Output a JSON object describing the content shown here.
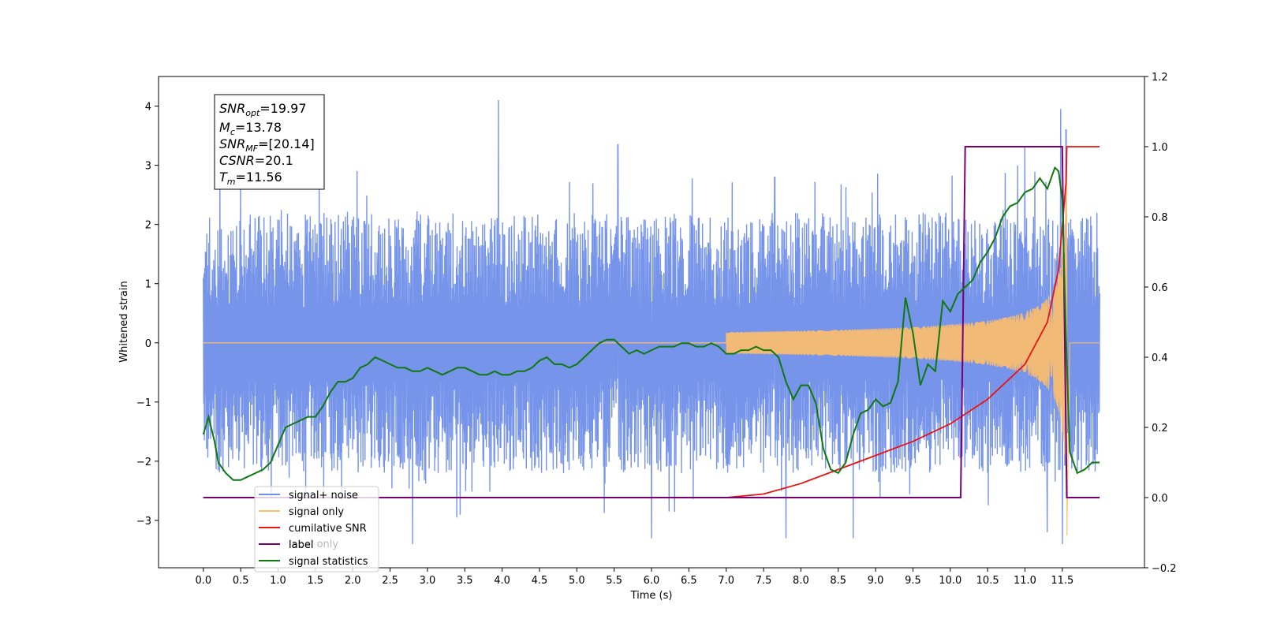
{
  "chart_data": {
    "type": "line",
    "title": "",
    "xlabel": "Time (s)",
    "ylabel": "Whitened strain",
    "xlim": [
      -0.6,
      12.6
    ],
    "ylim": [
      -3.8,
      4.5
    ],
    "y2lim": [
      -0.2,
      1.2
    ],
    "grid": false,
    "x_ticks": [
      0.0,
      0.5,
      1.0,
      1.5,
      2.0,
      2.5,
      3.0,
      3.5,
      4.0,
      4.5,
      5.0,
      5.5,
      6.0,
      6.5,
      7.0,
      7.5,
      8.0,
      8.5,
      9.0,
      9.5,
      10.0,
      10.5,
      11.0,
      11.5
    ],
    "x_tick_labels": [
      "0.0",
      "0.5",
      "1.0",
      "1.5",
      "2.0",
      "2.5",
      "3.0",
      "3.5",
      "4.0",
      "4.5",
      "5.0",
      "5.5",
      "6.0",
      "6.5",
      "7.0",
      "7.5",
      "8.0",
      "8.5",
      "9.0",
      "9.5",
      "10.0",
      "10.5",
      "11.0",
      "11.5"
    ],
    "y_ticks": [
      -3,
      -2,
      -1,
      0,
      1,
      2,
      3,
      4
    ],
    "y_tick_labels": [
      "−3",
      "−2",
      "−1",
      "0",
      "1",
      "2",
      "3",
      "4"
    ],
    "y2_ticks": [
      -0.2,
      0.0,
      0.2,
      0.4,
      0.6,
      0.8,
      1.0,
      1.2
    ],
    "y2_tick_labels": [
      "−0.2",
      "0.0",
      "0.2",
      "0.4",
      "0.6",
      "0.8",
      "1.0",
      "1.2"
    ],
    "legend_position": "bottom-left",
    "series": [
      {
        "name": "signal+ noise",
        "axis": "left",
        "color": "#6f8ee8",
        "description_values": {
          "x_range": [
            0.0,
            12.0
          ],
          "band_min": -2.3,
          "band_max": 2.0,
          "peaks": [
            [
              3.95,
              4.1
            ],
            [
              5.55,
              3.35
            ],
            [
              11.48,
              3.95
            ],
            [
              11.55,
              3.6
            ],
            [
              0.22,
              3.0
            ],
            [
              1.55,
              2.9
            ],
            [
              7.65,
              2.8
            ],
            [
              10.9,
              3.0
            ],
            [
              11.0,
              3.3
            ],
            [
              2.8,
              -3.4
            ],
            [
              6.0,
              -3.3
            ],
            [
              7.8,
              -3.3
            ],
            [
              11.5,
              -3.4
            ],
            [
              8.7,
              -3.3
            ],
            [
              11.3,
              -3.2
            ]
          ]
        }
      },
      {
        "name": "signal only",
        "axis": "left",
        "color": "#ffbe6a",
        "chirp": {
          "start": 7.0,
          "merger": 11.56,
          "end": 12.0,
          "merger_amp": 3.2
        }
      },
      {
        "name": "cumilative SNR",
        "axis": "right",
        "color": "#ee1111",
        "x": [
          7.0,
          7.5,
          8.0,
          8.5,
          9.0,
          9.5,
          10.0,
          10.5,
          11.0,
          11.3,
          11.45,
          11.55,
          11.56,
          12.0
        ],
        "y": [
          0.0,
          0.01,
          0.04,
          0.08,
          0.12,
          0.16,
          0.21,
          0.28,
          0.38,
          0.5,
          0.65,
          0.9,
          1.0,
          1.0
        ]
      },
      {
        "name": "label",
        "axis": "right",
        "color": "#770077",
        "x": [
          0.0,
          10.14,
          10.2,
          11.5,
          11.56,
          12.0
        ],
        "y": [
          0.0,
          0.0,
          1.0,
          1.0,
          0.0,
          0.0
        ]
      },
      {
        "name": "signal statistics",
        "axis": "right",
        "color": "#117711",
        "x": [
          0.0,
          0.07,
          0.15,
          0.2,
          0.3,
          0.4,
          0.5,
          0.6,
          0.7,
          0.8,
          0.9,
          1.0,
          1.1,
          1.2,
          1.3,
          1.4,
          1.5,
          1.6,
          1.7,
          1.8,
          1.9,
          2.0,
          2.1,
          2.2,
          2.3,
          2.4,
          2.5,
          2.6,
          2.7,
          2.8,
          2.9,
          3.0,
          3.1,
          3.2,
          3.3,
          3.4,
          3.5,
          3.6,
          3.7,
          3.8,
          3.9,
          4.0,
          4.1,
          4.2,
          4.3,
          4.4,
          4.5,
          4.6,
          4.7,
          4.8,
          4.9,
          5.0,
          5.1,
          5.2,
          5.3,
          5.4,
          5.5,
          5.6,
          5.7,
          5.8,
          5.9,
          6.0,
          6.1,
          6.2,
          6.3,
          6.4,
          6.5,
          6.6,
          6.7,
          6.8,
          6.9,
          7.0,
          7.1,
          7.2,
          7.3,
          7.4,
          7.5,
          7.6,
          7.7,
          7.8,
          7.9,
          8.0,
          8.1,
          8.2,
          8.3,
          8.4,
          8.5,
          8.6,
          8.7,
          8.8,
          8.9,
          9.0,
          9.1,
          9.2,
          9.3,
          9.4,
          9.5,
          9.6,
          9.7,
          9.8,
          9.9,
          10.0,
          10.1,
          10.2,
          10.3,
          10.4,
          10.5,
          10.6,
          10.7,
          10.8,
          10.9,
          11.0,
          11.1,
          11.2,
          11.3,
          11.4,
          11.45,
          11.5,
          11.55,
          11.6,
          11.7,
          11.8,
          11.9,
          12.0
        ],
        "y": [
          0.18,
          0.23,
          0.16,
          0.1,
          0.07,
          0.05,
          0.05,
          0.06,
          0.07,
          0.08,
          0.1,
          0.15,
          0.2,
          0.21,
          0.22,
          0.23,
          0.23,
          0.26,
          0.3,
          0.33,
          0.33,
          0.34,
          0.37,
          0.38,
          0.4,
          0.39,
          0.38,
          0.37,
          0.37,
          0.36,
          0.36,
          0.37,
          0.36,
          0.35,
          0.36,
          0.37,
          0.37,
          0.36,
          0.35,
          0.35,
          0.36,
          0.35,
          0.35,
          0.36,
          0.36,
          0.37,
          0.39,
          0.4,
          0.38,
          0.38,
          0.37,
          0.38,
          0.4,
          0.42,
          0.44,
          0.45,
          0.45,
          0.43,
          0.41,
          0.42,
          0.41,
          0.42,
          0.43,
          0.43,
          0.43,
          0.44,
          0.44,
          0.43,
          0.43,
          0.44,
          0.43,
          0.41,
          0.41,
          0.42,
          0.42,
          0.43,
          0.42,
          0.42,
          0.4,
          0.33,
          0.28,
          0.32,
          0.32,
          0.27,
          0.14,
          0.08,
          0.07,
          0.1,
          0.18,
          0.24,
          0.25,
          0.28,
          0.26,
          0.27,
          0.33,
          0.57,
          0.47,
          0.32,
          0.38,
          0.36,
          0.56,
          0.53,
          0.58,
          0.6,
          0.62,
          0.67,
          0.7,
          0.74,
          0.8,
          0.83,
          0.84,
          0.87,
          0.88,
          0.91,
          0.88,
          0.94,
          0.93,
          0.85,
          0.45,
          0.13,
          0.07,
          0.08,
          0.1,
          0.1
        ]
      }
    ],
    "annotations": [
      {
        "var": "SNR",
        "sub": "opt",
        "value": "=19.97"
      },
      {
        "var": "M",
        "sub": "c",
        "value": "=13.78"
      },
      {
        "var": "SNR",
        "sub": "MF",
        "value": "=[20.14]"
      },
      {
        "var": "CSNR",
        "sub": "",
        "value": "=20.1"
      },
      {
        "var": "T",
        "sub": "m",
        "value": "=11.56"
      }
    ],
    "legend_overlap_text": "label only"
  }
}
